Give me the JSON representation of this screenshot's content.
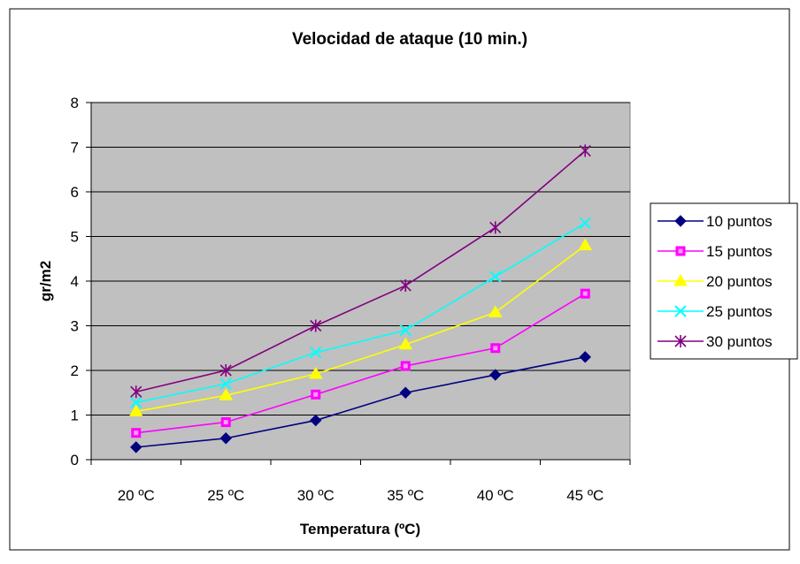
{
  "chart_data": {
    "type": "line",
    "title": "Velocidad de ataque (10 min.)",
    "xlabel": "Temperatura (ºC)",
    "ylabel": "gr/m2",
    "categories": [
      "20 ºC",
      "25 ºC",
      "30 ºC",
      "35 ºC",
      "40 ºC",
      "45 ºC"
    ],
    "ylim": [
      0,
      8
    ],
    "yticks": [
      "0",
      "1",
      "2",
      "3",
      "4",
      "5",
      "6",
      "7",
      "8"
    ],
    "grid": "horizontal",
    "legend_position": "right",
    "plot_background": "#C0C0C0",
    "series": [
      {
        "name": "10 puntos",
        "color": "#000080",
        "marker": "diamond",
        "values": [
          0.28,
          0.48,
          0.88,
          1.5,
          1.9,
          2.3
        ]
      },
      {
        "name": "15 puntos",
        "color": "#FF00FF",
        "marker": "square",
        "values": [
          0.6,
          0.84,
          1.46,
          2.1,
          2.5,
          3.72
        ]
      },
      {
        "name": "20 puntos",
        "color": "#FFFF00",
        "marker": "triangle",
        "values": [
          1.08,
          1.44,
          1.92,
          2.58,
          3.3,
          4.8
        ]
      },
      {
        "name": "25 puntos",
        "color": "#00FFFF",
        "marker": "x",
        "values": [
          1.28,
          1.7,
          2.4,
          2.9,
          4.1,
          5.3
        ]
      },
      {
        "name": "30 puntos",
        "color": "#800080",
        "marker": "star",
        "values": [
          1.52,
          2.0,
          3.0,
          3.9,
          5.2,
          6.92
        ]
      }
    ]
  }
}
